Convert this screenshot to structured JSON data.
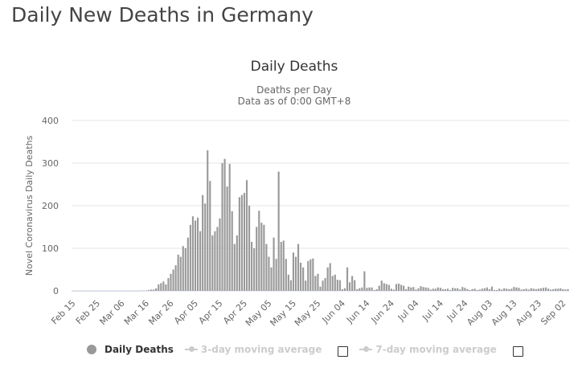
{
  "page": {
    "title": "Daily New Deaths in Germany"
  },
  "legend": {
    "items": [
      {
        "label": "Daily Deaths",
        "active": true
      },
      {
        "label": "3-day moving average",
        "active": false
      },
      {
        "label": "7-day moving average",
        "active": false
      }
    ]
  },
  "colors": {
    "bar": "#999999",
    "grid": "#e6e6e6",
    "text": "#333333",
    "inactive": "#cccccc"
  },
  "chart_data": {
    "type": "bar",
    "title": "Daily Deaths",
    "subtitle_lines": [
      "Deaths per Day",
      "Data as of 0:00 GMT+8"
    ],
    "ylabel": "Novel Coronavirus Daily Deaths",
    "xlabel": "",
    "ylim": [
      0,
      400
    ],
    "yticks": [
      0,
      100,
      200,
      300,
      400
    ],
    "grid": true,
    "legend_position": "bottom",
    "start_date": "Feb 15",
    "xtick_labels": [
      "Feb 15",
      "Feb 25",
      "Mar 06",
      "Mar 16",
      "Mar 26",
      "Apr 05",
      "Apr 15",
      "Apr 25",
      "May 05",
      "May 15",
      "May 25",
      "Jun 04",
      "Jun 14",
      "Jun 24",
      "Jul 04",
      "Jul 14",
      "Jul 24",
      "Aug 03",
      "Aug 13",
      "Aug 23",
      "Sep 02"
    ],
    "series": [
      {
        "name": "Daily Deaths",
        "values": [
          0,
          0,
          0,
          0,
          0,
          0,
          0,
          0,
          0,
          0,
          0,
          0,
          0,
          0,
          0,
          0,
          0,
          0,
          0,
          0,
          0,
          0,
          0,
          0,
          0,
          0,
          0,
          0,
          1,
          0,
          1,
          2,
          3,
          3,
          6,
          15,
          18,
          22,
          15,
          30,
          40,
          50,
          60,
          85,
          80,
          105,
          100,
          125,
          155,
          175,
          165,
          172,
          140,
          225,
          205,
          330,
          258,
          130,
          140,
          150,
          170,
          300,
          310,
          245,
          298,
          187,
          110,
          130,
          220,
          225,
          230,
          260,
          200,
          115,
          100,
          150,
          188,
          160,
          155,
          110,
          80,
          55,
          125,
          75,
          280,
          115,
          118,
          75,
          38,
          25,
          90,
          80,
          110,
          66,
          55,
          24,
          70,
          74,
          76,
          35,
          40,
          10,
          24,
          30,
          55,
          65,
          35,
          38,
          26,
          25,
          4,
          6,
          55,
          20,
          35,
          25,
          4,
          6,
          8,
          46,
          7,
          8,
          8,
          2,
          4,
          12,
          24,
          18,
          16,
          14,
          5,
          3,
          16,
          17,
          14,
          12,
          4,
          10,
          8,
          9,
          3,
          6,
          11,
          9,
          8,
          7,
          3,
          5,
          5,
          8,
          7,
          4,
          4,
          5,
          2,
          7,
          6,
          6,
          3,
          9,
          7,
          4,
          2,
          4,
          5,
          2,
          3,
          5,
          6,
          8,
          4,
          10,
          2,
          2,
          5,
          3,
          6,
          5,
          4,
          5,
          9,
          8,
          7,
          3,
          4,
          5,
          3,
          6,
          5,
          4,
          5,
          6,
          7,
          8,
          5,
          3,
          4,
          5,
          5,
          6,
          4,
          3,
          4
        ]
      }
    ]
  }
}
